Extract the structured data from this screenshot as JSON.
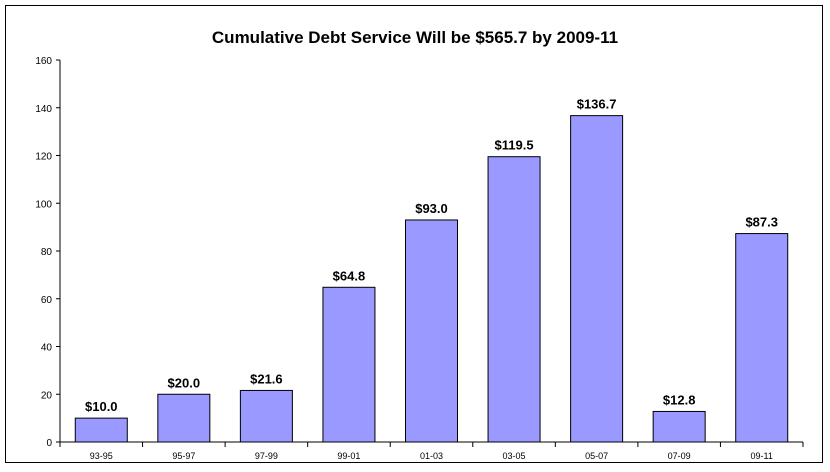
{
  "chart_data": {
    "type": "bar",
    "title": "Cumulative Debt Service Will be $565.7 by 2009-11",
    "xlabel": "",
    "ylabel": "",
    "categories": [
      "93-95",
      "95-97",
      "97-99",
      "99-01",
      "01-03",
      "03-05",
      "05-07",
      "07-09",
      "09-11"
    ],
    "values": [
      10.0,
      20.0,
      21.6,
      64.8,
      93.0,
      119.5,
      136.7,
      12.8,
      87.3
    ],
    "data_labels": [
      "$10.0",
      "$20.0",
      "$21.6",
      "$64.8",
      "$93.0",
      "$119.5",
      "$136.7",
      "$12.8",
      "$87.3"
    ],
    "ylim": [
      0,
      160
    ],
    "yticks": [
      0,
      20,
      40,
      60,
      80,
      100,
      120,
      140,
      160
    ],
    "grid": false,
    "legend": "none",
    "colors": {
      "bar_fill": "#9999ff",
      "bar_stroke": "#000000",
      "axis": "#000000",
      "text": "#000000"
    }
  }
}
